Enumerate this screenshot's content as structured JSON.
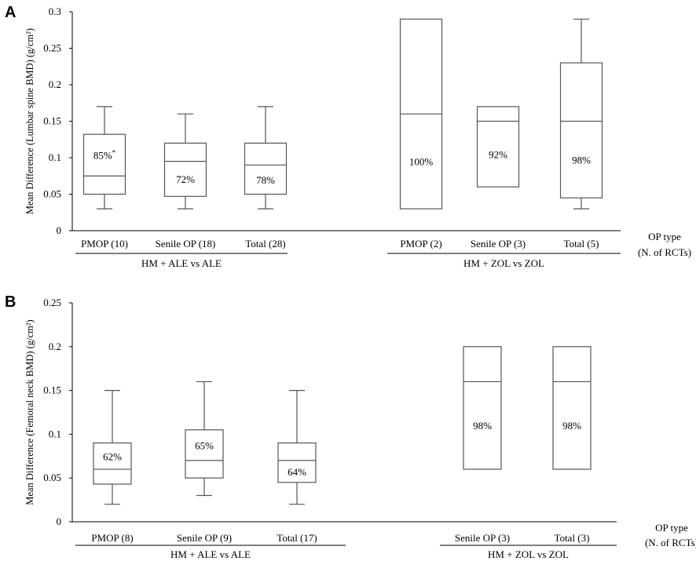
{
  "chart_data": [
    {
      "type": "box",
      "panel_label": "A",
      "ylabel": "Mean Difference (Lumbar spine BMD) (g/cm²)",
      "ylim": [
        0,
        0.3
      ],
      "yticks": [
        "0",
        "0.05",
        "0.1",
        "0.15",
        "0.2",
        "0.25",
        "0.3"
      ],
      "grid": false,
      "right_label": [
        "OP type",
        "(N. of RCTs)"
      ],
      "groups": [
        {
          "label": "HM + ALE vs ALE",
          "boxes": [
            {
              "category": "PMOP (10)",
              "min": 0.03,
              "q1": 0.05,
              "median": 0.075,
              "q3": 0.132,
              "max": 0.17,
              "percent": "85%",
              "mark": "*"
            },
            {
              "category": "Senile OP (18)",
              "min": 0.03,
              "q1": 0.047,
              "median": 0.095,
              "q3": 0.12,
              "max": 0.16,
              "percent": "72%",
              "mark": ""
            },
            {
              "category": "Total (28)",
              "min": 0.03,
              "q1": 0.05,
              "median": 0.09,
              "q3": 0.12,
              "max": 0.17,
              "percent": "78%",
              "mark": ""
            }
          ]
        },
        {
          "label": "HM + ZOL vs ZOL",
          "boxes": [
            {
              "category": "PMOP (2)",
              "min": 0.03,
              "q1": 0.03,
              "median": 0.16,
              "q3": 0.29,
              "max": 0.29,
              "percent": "100%",
              "mark": ""
            },
            {
              "category": "Senile OP (3)",
              "min": 0.06,
              "q1": 0.06,
              "median": 0.15,
              "q3": 0.17,
              "max": 0.17,
              "percent": "92%",
              "mark": ""
            },
            {
              "category": "Total (5)",
              "min": 0.03,
              "q1": 0.045,
              "median": 0.15,
              "q3": 0.23,
              "max": 0.29,
              "percent": "98%",
              "mark": ""
            }
          ]
        }
      ]
    },
    {
      "type": "box",
      "panel_label": "B",
      "ylabel": "Mean Difference (Femoral neck BMD) (g/cm²)",
      "ylim": [
        0,
        0.25
      ],
      "yticks": [
        "0",
        "0.05",
        "0.1",
        "0.15",
        "0.2",
        "0.25"
      ],
      "grid": false,
      "right_label": [
        "OP type",
        "(N. of RCTs)"
      ],
      "groups": [
        {
          "label": "HM + ALE vs ALE",
          "boxes": [
            {
              "category": "PMOP  (8)",
              "min": 0.02,
              "q1": 0.043,
              "median": 0.06,
              "q3": 0.09,
              "max": 0.15,
              "percent": "62%",
              "mark": ""
            },
            {
              "category": "Senile OP (9)",
              "min": 0.03,
              "q1": 0.05,
              "median": 0.07,
              "q3": 0.105,
              "max": 0.16,
              "percent": "65%",
              "mark": ""
            },
            {
              "category": "Total (17)",
              "min": 0.02,
              "q1": 0.045,
              "median": 0.07,
              "q3": 0.09,
              "max": 0.15,
              "percent": "64%",
              "mark": ""
            }
          ]
        },
        {
          "label": "HM + ZOL vs ZOL",
          "boxes": [
            {
              "category": "Senile OP (3)",
              "min": 0.06,
              "q1": 0.06,
              "median": 0.16,
              "q3": 0.2,
              "max": 0.2,
              "percent": "98%",
              "mark": ""
            },
            {
              "category": "Total (3)",
              "min": 0.06,
              "q1": 0.06,
              "median": 0.16,
              "q3": 0.2,
              "max": 0.2,
              "percent": "98%",
              "mark": ""
            }
          ]
        }
      ]
    }
  ]
}
